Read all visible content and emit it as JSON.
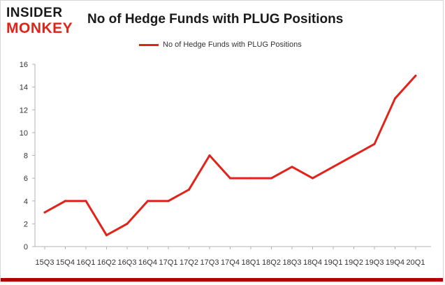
{
  "brand": {
    "line1": "INSIDER",
    "line2": "MONKEY"
  },
  "chart_data": {
    "type": "line",
    "title": "No of Hedge Funds with PLUG Positions",
    "xlabel": "",
    "ylabel": "",
    "legend": "top-center",
    "grid": false,
    "categories": [
      "15Q3",
      "15Q4",
      "16Q1",
      "16Q2",
      "16Q3",
      "16Q4",
      "17Q1",
      "17Q2",
      "17Q3",
      "17Q4",
      "18Q1",
      "18Q2",
      "18Q3",
      "18Q4",
      "19Q1",
      "19Q2",
      "19Q3",
      "19Q4",
      "20Q1"
    ],
    "series": [
      {
        "name": "No of Hedge Funds with PLUG Positions",
        "values": [
          3,
          4,
          4,
          1,
          2,
          4,
          4,
          5,
          8,
          6,
          6,
          6,
          7,
          6,
          7,
          8,
          9,
          13,
          15
        ],
        "color": "#e2231a"
      }
    ],
    "ylim": [
      0,
      16
    ],
    "yticks": [
      "0",
      "2",
      "4",
      "6",
      "8",
      "10",
      "12",
      "14",
      "16"
    ]
  }
}
